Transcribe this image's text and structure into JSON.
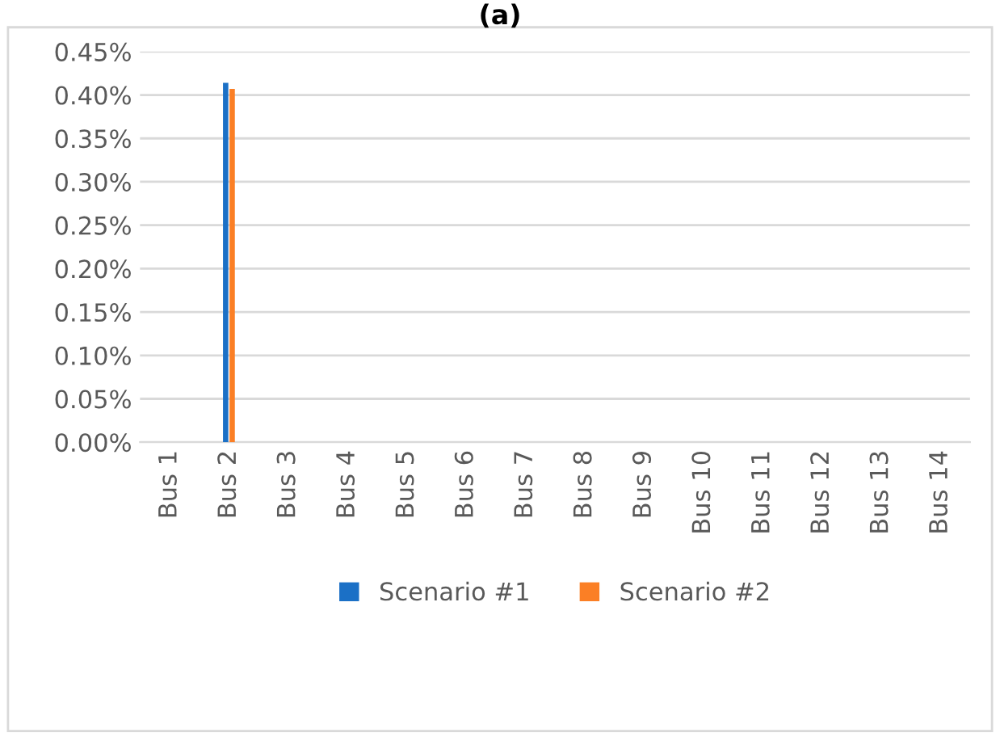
{
  "chart_data": {
    "type": "bar",
    "title": "(a)",
    "categories": [
      "Bus 1",
      "Bus 2",
      "Bus 3",
      "Bus 4",
      "Bus 5",
      "Bus 6",
      "Bus 7",
      "Bus 8",
      "Bus 9",
      "Bus 10",
      "Bus 11",
      "Bus 12",
      "Bus 13",
      "Bus 14"
    ],
    "series": [
      {
        "name": "Scenario #1",
        "color": "#1b70c6",
        "values": [
          0,
          0.414,
          0,
          0,
          0,
          0,
          0,
          0,
          0,
          0,
          0,
          0,
          0,
          0
        ]
      },
      {
        "name": "Scenario #2",
        "color": "#fb7f25",
        "values": [
          0,
          0.407,
          0,
          0,
          0,
          0,
          0,
          0,
          0,
          0,
          0,
          0,
          0,
          0
        ]
      }
    ],
    "ylim": [
      0,
      0.45
    ],
    "yticks": [
      {
        "value": 0,
        "label": "0.00%"
      },
      {
        "value": 0.05,
        "label": "0.05%"
      },
      {
        "value": 0.1,
        "label": "0.10%"
      },
      {
        "value": 0.15,
        "label": "0.15%"
      },
      {
        "value": 0.2,
        "label": "0.20%"
      },
      {
        "value": 0.25,
        "label": "0.25%"
      },
      {
        "value": 0.3,
        "label": "0.30%"
      },
      {
        "value": 0.35,
        "label": "0.35%"
      },
      {
        "value": 0.4,
        "label": "0.40%"
      },
      {
        "value": 0.45,
        "label": "0.45%"
      }
    ],
    "grid": "y",
    "legend": "bottom"
  }
}
